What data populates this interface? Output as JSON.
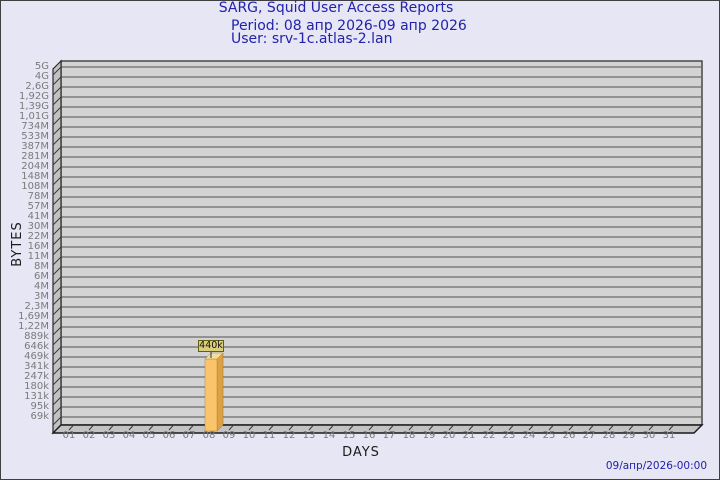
{
  "header": {
    "title": "SARG, Squid User Access Reports",
    "period": "Period: 08 апр 2026-09 апр 2026",
    "user": "User: srv-1c.atlas-2.lan"
  },
  "footer": {
    "generated_timestamp": "09/апр/2026-00:00"
  },
  "chart_data": {
    "type": "bar",
    "title": "SARG, Squid User Access Reports",
    "subtitle": "Period: 08 апр 2026-09 апр 2026",
    "user_line": "User: srv-1c.atlas-2.lan",
    "xlabel": "DAYS",
    "ylabel": "BYTES",
    "grid": true,
    "legend": null,
    "x_categories": [
      "01",
      "02",
      "03",
      "04",
      "05",
      "06",
      "07",
      "08",
      "09",
      "10",
      "11",
      "12",
      "13",
      "14",
      "15",
      "16",
      "17",
      "18",
      "19",
      "20",
      "21",
      "22",
      "23",
      "24",
      "25",
      "26",
      "27",
      "28",
      "29",
      "30",
      "31"
    ],
    "y_tick_labels": [
      "5G",
      "4G",
      "2,6G",
      "1,92G",
      "1,39G",
      "1,01G",
      "734M",
      "533M",
      "387M",
      "281M",
      "204M",
      "148M",
      "108M",
      "78M",
      "57M",
      "41M",
      "30M",
      "22M",
      "16M",
      "11M",
      "8M",
      "6M",
      "4M",
      "3M",
      "2,3M",
      "1,69M",
      "1,22M",
      "889k",
      "646k",
      "469k",
      "341k",
      "247k",
      "180k",
      "131k",
      "95k",
      "69k"
    ],
    "y_range": {
      "min_bytes": 69000,
      "max_bytes": 5000000000,
      "scale": "log"
    },
    "bars": [
      {
        "day": "08",
        "value_bytes": 440000,
        "value_label": "440k"
      }
    ],
    "timestamp": "09/апр/2026-00:00",
    "colors": {
      "background": "#e6e6f5",
      "title_text": "#2222aa",
      "axis_tick_text": "#7b7b7b",
      "axis_name_text": "#1c1c1c",
      "plot_back_wall": "#d3d3d3",
      "plot_side_wall": "#c2c2c2",
      "plot_border": "#3d3d3d",
      "grid_line": "#6b6b6b",
      "bar_front": "#fcc46a",
      "bar_side": "#dda144",
      "bar_top": "#f2dc9e",
      "value_box_bg": "#d9ce7c",
      "value_box_border": "#606013"
    }
  }
}
